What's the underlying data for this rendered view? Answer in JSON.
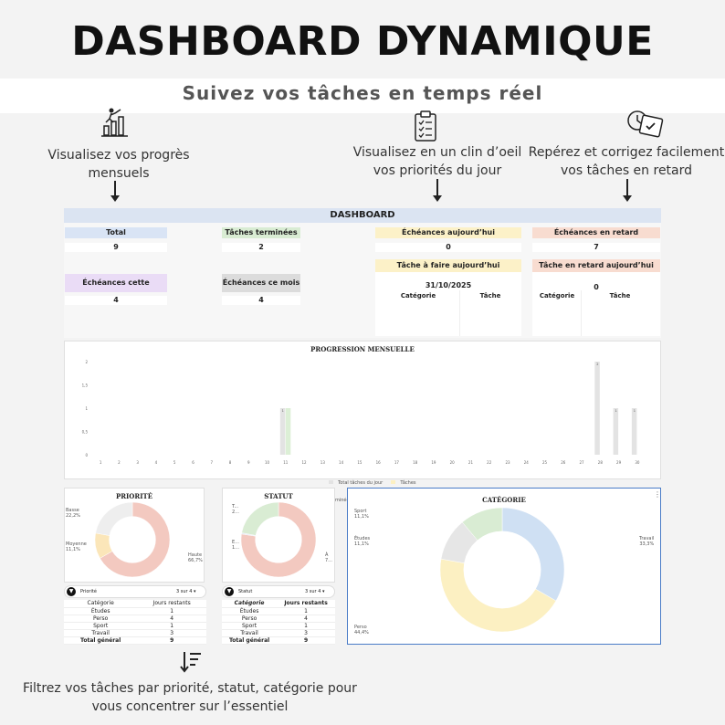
{
  "hero": {
    "title": "DASHBOARD DYNAMIQUE",
    "subtitle": "Suivez vos tâches en temps réel"
  },
  "callouts": {
    "progress": "Visualisez vos progrès mensuels",
    "priorities": "Visualisez en un clin d’oeil vos priorités du jour",
    "late": "Repérez et corrigez facilement vos tâches en retard",
    "filter": "Filtrez vos tâches par priorité, statut, catégorie pour vous concentrer sur l’essentiel"
  },
  "dashboard": {
    "title": "DASHBOARD",
    "kpis": {
      "total": {
        "label": "Total",
        "value": "9",
        "color": "#d9e4f5"
      },
      "done": {
        "label": "Tâches terminées",
        "value": "2",
        "color": "#d9ecd3"
      },
      "due_today": {
        "label": "Échéances aujourd’hui",
        "value": "0",
        "color": "#fcf1c8"
      },
      "late": {
        "label": "Échéances en retard",
        "value": "7",
        "color": "#f8dcd0"
      },
      "week": {
        "label": "Échéances cette semaine",
        "value": "4",
        "color": "#eadcf6"
      },
      "month": {
        "label": "Échéances ce mois",
        "value": "4",
        "color": "#dcdcdc"
      }
    },
    "today_tasks": {
      "label": "Tâche à faire aujourd’hui",
      "date": "31/10/2025",
      "col1": "Catégorie",
      "col2": "Tâche"
    },
    "late_tasks": {
      "label": "Tâche en retard  aujourd’hui",
      "value": "0",
      "col1": "Catégorie",
      "col2": "Tâche"
    }
  },
  "progression": {
    "title": "PROGRESSION MENSUELLE",
    "legend": [
      "Total tâches du jour",
      "Tâches terminées du jour"
    ]
  },
  "chart_data": [
    {
      "type": "bar",
      "title": "PROGRESSION MENSUELLE",
      "categories": [
        "1",
        "2",
        "3",
        "4",
        "5",
        "6",
        "7",
        "8",
        "9",
        "10",
        "11",
        "12",
        "13",
        "14",
        "15",
        "16",
        "17",
        "18",
        "19",
        "20",
        "21",
        "22",
        "23",
        "24",
        "25",
        "26",
        "27",
        "28",
        "29",
        "30"
      ],
      "ylim": [
        0,
        2
      ],
      "yticks": [
        "0",
        "0,5",
        "1",
        "1,5",
        "2"
      ],
      "series": [
        {
          "name": "Total tâches du jour",
          "color": "#e3e3e3",
          "values": [
            0,
            0,
            0,
            0,
            0,
            0,
            0,
            0,
            0,
            0,
            1,
            0,
            0,
            0,
            0,
            0,
            0,
            0,
            0,
            0,
            0,
            0,
            0,
            0,
            0,
            0,
            0,
            2,
            1,
            1
          ]
        },
        {
          "name": "Tâches terminées du jour",
          "color": "#dcefd6",
          "values": [
            0,
            0,
            0,
            0,
            0,
            0,
            0,
            0,
            0,
            0,
            1,
            0,
            0,
            0,
            0,
            0,
            0,
            0,
            0,
            0,
            0,
            0,
            0,
            0,
            0,
            0,
            0,
            0,
            0,
            0
          ]
        }
      ],
      "data_labels": [
        {
          "x": "11",
          "text": "1"
        },
        {
          "x": "28",
          "text": "2"
        },
        {
          "x": "29",
          "text": "1"
        },
        {
          "x": "30",
          "text": "1"
        }
      ]
    },
    {
      "type": "pie",
      "title": "PRIORITÉ",
      "slices": [
        {
          "label": "Haute",
          "value": 66.7,
          "pct": "66,7%",
          "color": "#f3c9c0"
        },
        {
          "label": "Moyenne",
          "value": 11.1,
          "pct": "11,1%",
          "color": "#fbe6b9"
        },
        {
          "label": "Basse",
          "value": 22.2,
          "pct": "22,2%",
          "color": "#eeeeee"
        }
      ]
    },
    {
      "type": "pie",
      "title": "STATUT",
      "slices": [
        {
          "label": "À",
          "value": 77.8,
          "pct": "7...",
          "color": "#f3c9c0"
        },
        {
          "label": "E...",
          "value": 0.5,
          "pct": "1...",
          "color": "#dde6f5"
        },
        {
          "label": "T...",
          "value": 22.2,
          "pct": "2...",
          "color": "#d9ecd3"
        }
      ]
    },
    {
      "type": "pie",
      "title": "CATÉGORIE",
      "slices": [
        {
          "label": "Travail",
          "value": 33.3,
          "pct": "33,3%",
          "color": "#cfe0f3"
        },
        {
          "label": "Perso",
          "value": 44.4,
          "pct": "44,4%",
          "color": "#fcf0c2"
        },
        {
          "label": "Études",
          "value": 11.1,
          "pct": "11,1%",
          "color": "#e6e6e6"
        },
        {
          "label": "Sport",
          "value": 11.1,
          "pct": "11,1%",
          "color": "#d9ecd3"
        }
      ]
    }
  ],
  "filters": {
    "priority": {
      "label": "Priorité",
      "count": "3 sur 4 ▾"
    },
    "status": {
      "label": "Statut",
      "count": "3 sur 4 ▾"
    }
  },
  "pivot": {
    "headers": [
      "Catégorie",
      "Jours restants"
    ],
    "rows": [
      [
        "Études",
        "1"
      ],
      [
        "Perso",
        "4"
      ],
      [
        "Sport",
        "1"
      ],
      [
        "Travail",
        "3"
      ]
    ],
    "total": [
      "Total général",
      "9"
    ]
  },
  "icons": {
    "progress": "growth-chart-icon",
    "priorities": "clipboard-checklist-icon",
    "late": "clock-calendar-icon",
    "filter": "sort-filter-icon"
  }
}
